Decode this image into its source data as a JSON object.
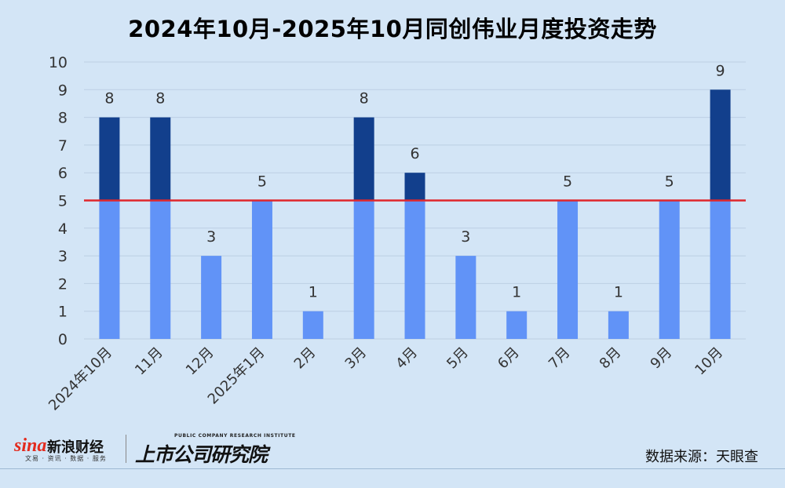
{
  "title": "2024年10月-2025年10月同创伟业月度投资走势",
  "source": "数据来源：天眼查",
  "logos": {
    "sina_word": "sina",
    "sina_cn": "新浪财经",
    "sina_sub": "文易 · 资讯 · 数据 · 服务",
    "research_en": "PUBLIC COMPANY RESEARCH INSTITUTE",
    "research_cn": "上市公司研究院"
  },
  "colors": {
    "background": "#d3e5f6",
    "bar_base": "#6193f7",
    "bar_above": "#123f8c",
    "reference_line": "#e0262b",
    "gridline": "#bccfe3",
    "text": "#333333"
  },
  "chart_data": {
    "type": "bar",
    "title": "2024年10月-2025年10月同创伟业月度投资走势",
    "xlabel": "",
    "ylabel": "",
    "categories": [
      "2024年10月",
      "11月",
      "12月",
      "2025年1月",
      "2月",
      "3月",
      "4月",
      "5月",
      "6月",
      "7月",
      "8月",
      "9月",
      "10月"
    ],
    "values": [
      8,
      8,
      3,
      5,
      1,
      8,
      6,
      3,
      1,
      5,
      1,
      5,
      9
    ],
    "reference_line": 5,
    "ylim": [
      0,
      10
    ],
    "yticks": [
      0,
      1,
      2,
      3,
      4,
      5,
      6,
      7,
      8,
      9,
      10
    ],
    "grid": true,
    "legend": "none",
    "data_labels": true
  }
}
